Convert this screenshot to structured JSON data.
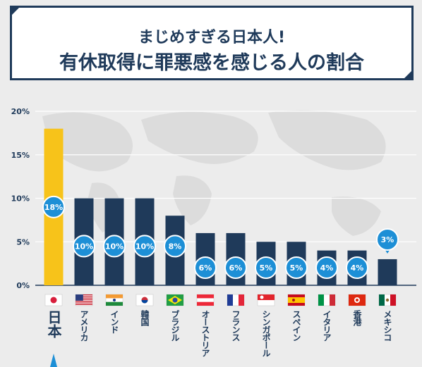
{
  "header": {
    "title_line1": "まじめすぎる日本人!",
    "title_line2": "有休取得に罪悪感を感じる人の割合"
  },
  "colors": {
    "navy": "#1f3a5a",
    "highlight": "#f7c31a",
    "bubble": "#1d8fd6",
    "background": "#ececec"
  },
  "chart_data": {
    "type": "bar",
    "title": "有休取得に罪悪感を感じる人の割合",
    "categories": [
      "日本",
      "アメリカ",
      "インド",
      "韓国",
      "ブラジル",
      "オーストリア",
      "フランス",
      "シンガポール",
      "スペイン",
      "イタリア",
      "香港",
      "メキシコ"
    ],
    "values": [
      18,
      10,
      10,
      10,
      8,
      6,
      6,
      5,
      5,
      4,
      4,
      3
    ],
    "value_labels": [
      "18%",
      "10%",
      "10%",
      "10%",
      "8%",
      "6%",
      "6%",
      "5%",
      "5%",
      "4%",
      "4%",
      "3%"
    ],
    "flags": [
      "japan-flag",
      "usa-flag",
      "india-flag",
      "korea-flag",
      "brazil-flag",
      "austria-flag",
      "france-flag",
      "singapore-flag",
      "spain-flag",
      "italy-flag",
      "hongkong-flag",
      "mexico-flag"
    ],
    "highlight_index": 0,
    "ylim": [
      0,
      20
    ],
    "yticks": [
      "0%",
      "5%",
      "10%",
      "15%",
      "20%"
    ],
    "grid": true,
    "legend": "none"
  }
}
